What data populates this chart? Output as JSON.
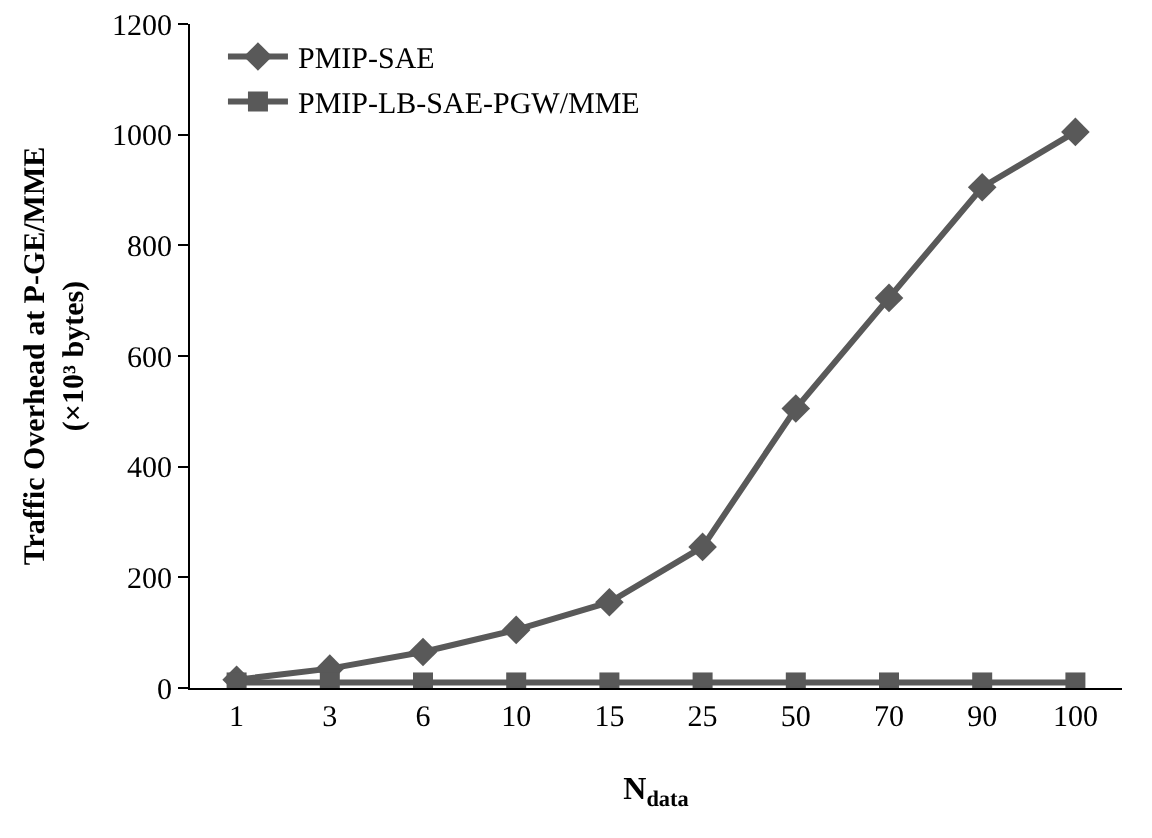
{
  "chart_data": {
    "type": "line",
    "xlabel": "N$_{data}$",
    "ylabel": "Traffic Overhead at P-GE/MME (×10³ bytes)",
    "categories": [
      "1",
      "3",
      "6",
      "10",
      "15",
      "25",
      "50",
      "70",
      "90",
      "100"
    ],
    "ylim": [
      0,
      1200
    ],
    "yticks": [
      0,
      200,
      400,
      600,
      800,
      1000,
      1200
    ],
    "grid": false,
    "legend": "top left",
    "line_style": "solid",
    "series": [
      {
        "name": "PMIP-SAE",
        "color": "#595959",
        "marker": "diamond",
        "values": [
          15,
          35,
          65,
          105,
          155,
          255,
          505,
          705,
          905,
          1005
        ]
      },
      {
        "name": "PMIP-LB-SAE-PGW/MME",
        "color": "#595959",
        "marker": "square",
        "values": [
          10,
          10,
          10,
          10,
          10,
          10,
          10,
          10,
          10,
          10
        ]
      }
    ]
  }
}
